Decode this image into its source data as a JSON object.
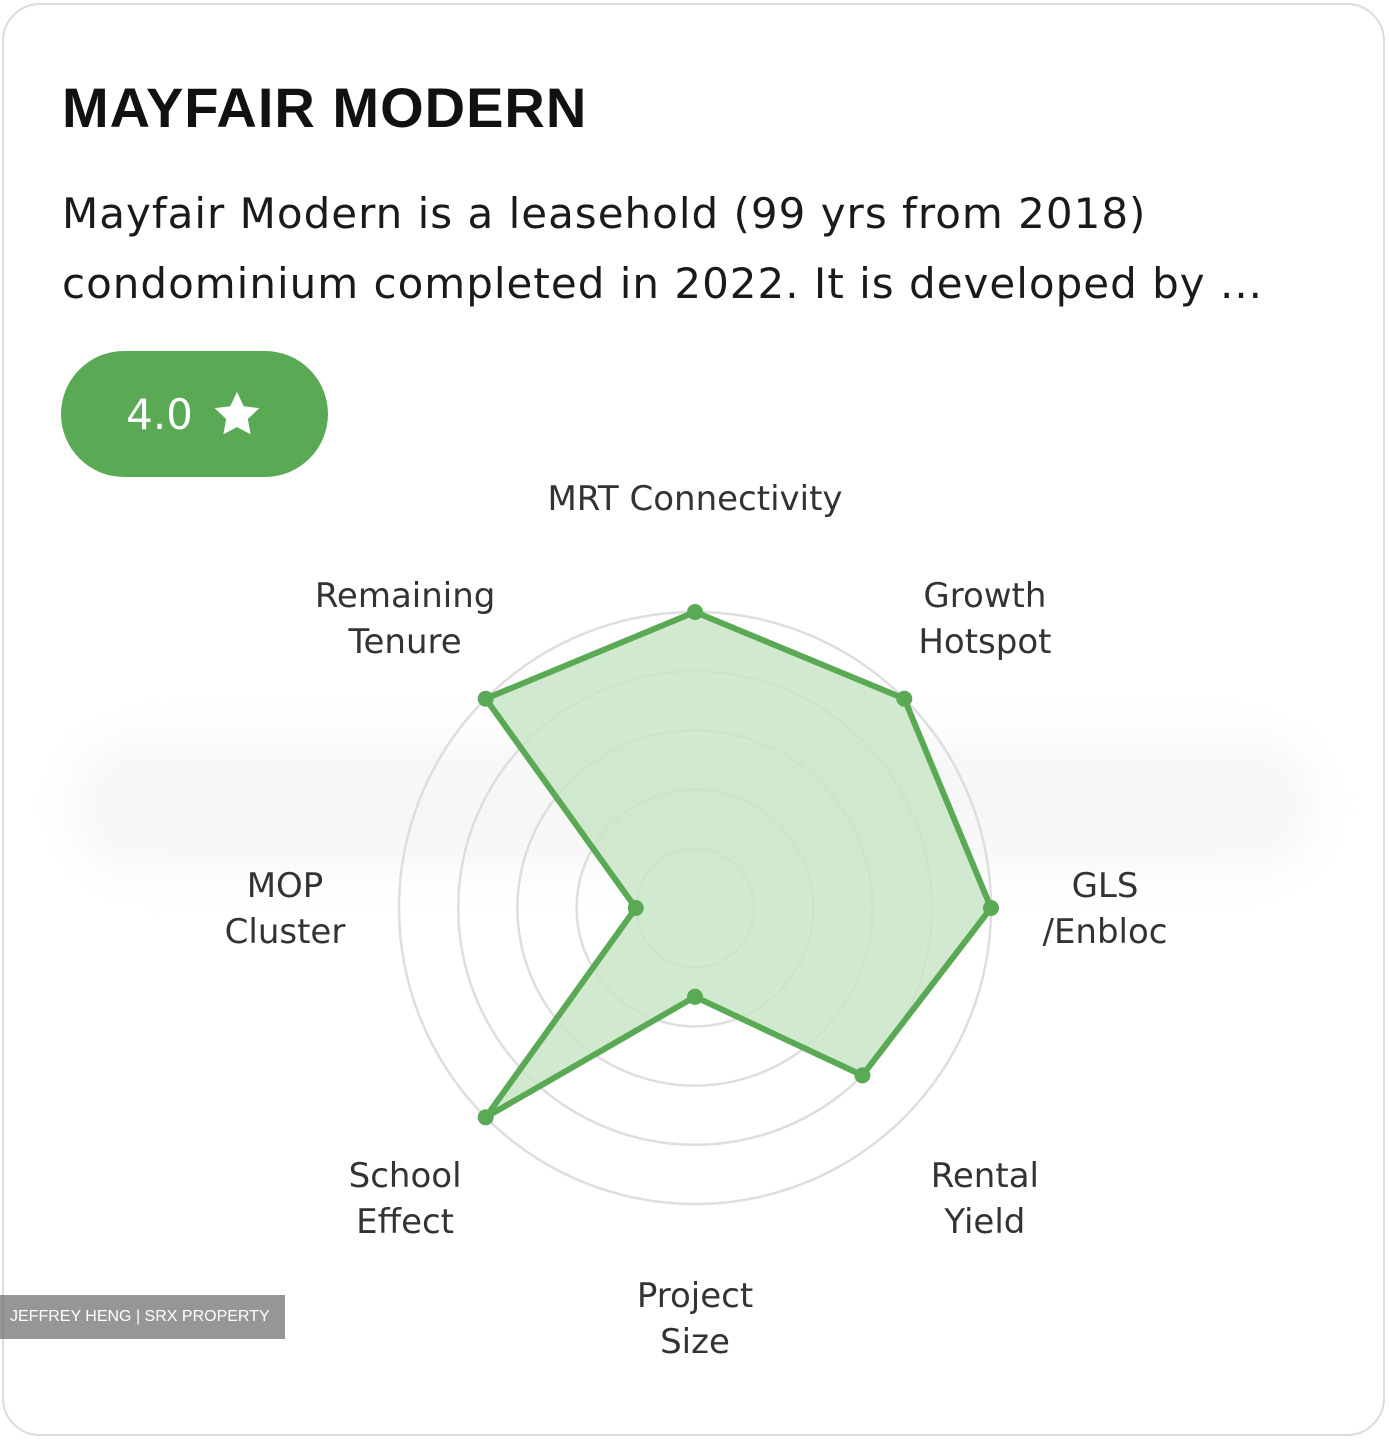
{
  "project": {
    "title": "MAYFAIR MODERN",
    "description": "Mayfair Modern is a leasehold (99 yrs from 2018) condominium completed in 2022. It is developed by ...",
    "rating": "4.0",
    "rating_icon": "star-icon"
  },
  "chart_data": {
    "type": "radar",
    "axes": [
      "MRT Connectivity",
      "Growth Hotspot",
      "GLS /Enbloc",
      "Rental Yield",
      "Project Size",
      "School Effect",
      "MOP Cluster",
      "Remaining Tenure"
    ],
    "axis_label_lines": [
      [
        "MRT Connectivity"
      ],
      [
        "Growth",
        "Hotspot"
      ],
      [
        "GLS",
        "/Enbloc"
      ],
      [
        "Rental",
        "Yield"
      ],
      [
        "Project",
        "Size"
      ],
      [
        "School",
        "Effect"
      ],
      [
        "MOP",
        "Cluster"
      ],
      [
        "Remaining",
        "Tenure"
      ]
    ],
    "values": [
      5,
      5,
      5,
      4,
      1.5,
      5,
      1,
      5
    ],
    "scale_max": 5,
    "rings": 5,
    "fill_color": "#c9e5c5",
    "line_color": "#5aa955",
    "grid_color": "#dedede"
  },
  "watermark": "JEFFREY HENG | SRX PROPERTY",
  "colors": {
    "accent": "#5aa955"
  }
}
